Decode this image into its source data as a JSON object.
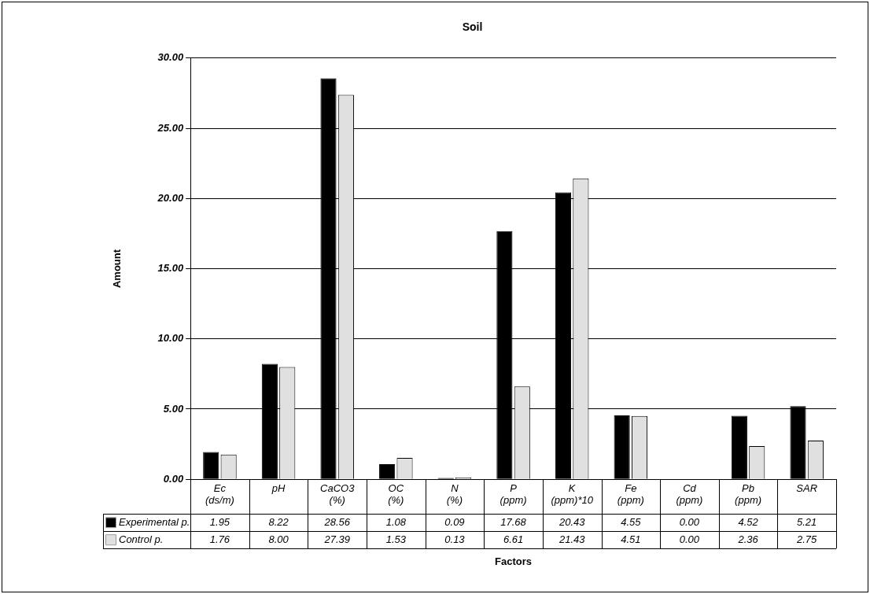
{
  "chart_data": {
    "type": "bar",
    "title": "Soil",
    "xlabel": "Factors",
    "ylabel": "Amount",
    "categories": [
      "Ec (ds/m)",
      "pH",
      "CaCO3 (%)",
      "OC (%)",
      "N (%)",
      "P (ppm)",
      "K (ppm)*10",
      "Fe (ppm)",
      "Cd (ppm)",
      "Pb (ppm)",
      "SAR"
    ],
    "series": [
      {
        "name": "Experimental p.",
        "color": "#000000",
        "values": [
          1.95,
          8.22,
          28.56,
          1.08,
          0.09,
          17.68,
          20.43,
          4.55,
          0.0,
          4.52,
          5.21
        ],
        "value_labels": [
          "1.95",
          "8.22",
          "28.56",
          "1.08",
          "0.09",
          "17.68",
          "20.43",
          "4.55",
          "0.00",
          "4.52",
          "5.21"
        ]
      },
      {
        "name": "Control p.",
        "color": "#e0e0e0",
        "values": [
          1.76,
          8.0,
          27.39,
          1.53,
          0.13,
          6.61,
          21.43,
          4.51,
          0.0,
          2.36,
          2.75
        ],
        "value_labels": [
          "1.76",
          "8.00",
          "27.39",
          "1.53",
          "0.13",
          "6.61",
          "21.43",
          "4.51",
          "0.00",
          "2.36",
          "2.75"
        ]
      }
    ],
    "ylim": [
      0,
      30
    ],
    "yticks": [
      {
        "value": 0,
        "label": "0.00"
      },
      {
        "value": 5,
        "label": "5.00"
      },
      {
        "value": 10,
        "label": "10.00"
      },
      {
        "value": 15,
        "label": "15.00"
      },
      {
        "value": 20,
        "label": "20.00"
      },
      {
        "value": 25,
        "label": "25.00"
      },
      {
        "value": 30,
        "label": "30.00"
      }
    ],
    "grid": "y",
    "legend": "bottom left"
  }
}
